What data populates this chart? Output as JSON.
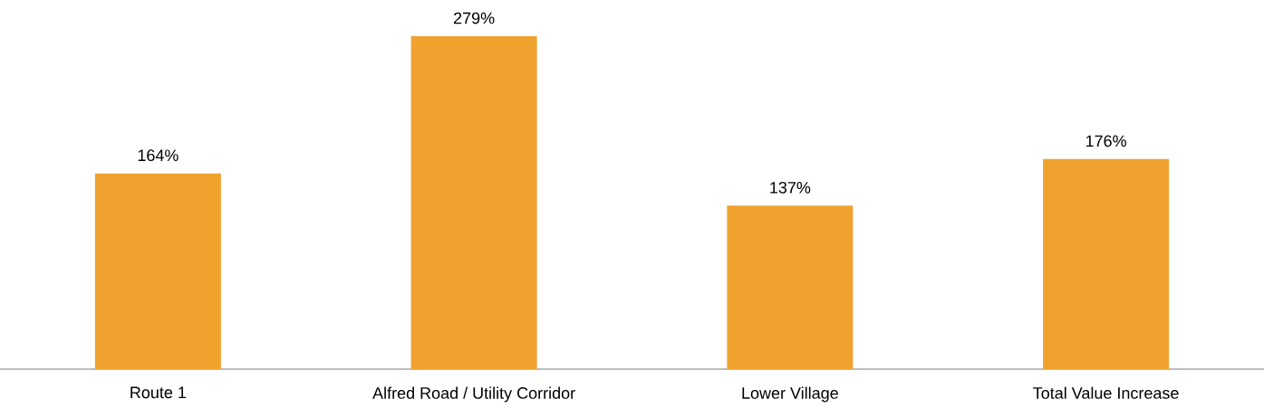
{
  "chart_data": {
    "type": "bar",
    "categories": [
      "Route 1",
      "Alfred Road / Utility Corridor",
      "Lower Village",
      "Total Value Increase"
    ],
    "values": [
      164,
      279,
      137,
      176
    ],
    "value_labels": [
      "164%",
      "279%",
      "137%",
      "176%"
    ],
    "color": "#f0a22e"
  }
}
